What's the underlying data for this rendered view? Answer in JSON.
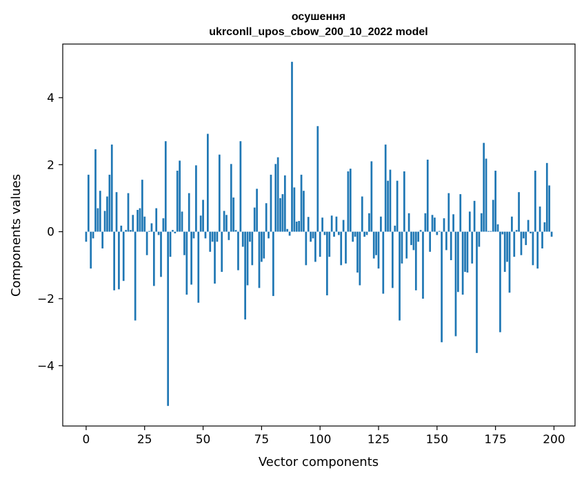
{
  "chart_data": {
    "type": "bar",
    "title_line1": "осушення",
    "title_line2": "ukrconll_upos_cbow_200_10_2022 model",
    "xlabel": "Vector components",
    "ylabel": "Components values",
    "xlim": [
      -10,
      209
    ],
    "ylim": [
      -5.8,
      5.6
    ],
    "xticks": [
      0,
      25,
      50,
      75,
      100,
      125,
      150,
      175,
      200
    ],
    "yticks": [
      -4,
      -2,
      0,
      2,
      4
    ],
    "bar_color": "#1f77b4",
    "x": [
      0,
      1,
      2,
      3,
      4,
      5,
      6,
      7,
      8,
      9,
      10,
      11,
      12,
      13,
      14,
      15,
      16,
      17,
      18,
      19,
      20,
      21,
      22,
      23,
      24,
      25,
      26,
      27,
      28,
      29,
      30,
      31,
      32,
      33,
      34,
      35,
      36,
      37,
      38,
      39,
      40,
      41,
      42,
      43,
      44,
      45,
      46,
      47,
      48,
      49,
      50,
      51,
      52,
      53,
      54,
      55,
      56,
      57,
      58,
      59,
      60,
      61,
      62,
      63,
      64,
      65,
      66,
      67,
      68,
      69,
      70,
      71,
      72,
      73,
      74,
      75,
      76,
      77,
      78,
      79,
      80,
      81,
      82,
      83,
      84,
      85,
      86,
      87,
      88,
      89,
      90,
      91,
      92,
      93,
      94,
      95,
      96,
      97,
      98,
      99,
      100,
      101,
      102,
      103,
      104,
      105,
      106,
      107,
      108,
      109,
      110,
      111,
      112,
      113,
      114,
      115,
      116,
      117,
      118,
      119,
      120,
      121,
      122,
      123,
      124,
      125,
      126,
      127,
      128,
      129,
      130,
      131,
      132,
      133,
      134,
      135,
      136,
      137,
      138,
      139,
      140,
      141,
      142,
      143,
      144,
      145,
      146,
      147,
      148,
      149,
      150,
      151,
      152,
      153,
      154,
      155,
      156,
      157,
      158,
      159,
      160,
      161,
      162,
      163,
      164,
      165,
      166,
      167,
      168,
      169,
      170,
      171,
      172,
      173,
      174,
      175,
      176,
      177,
      178,
      179,
      180,
      181,
      182,
      183,
      184,
      185,
      186,
      187,
      188,
      189,
      190,
      191,
      192,
      193,
      194,
      195,
      196,
      197,
      198,
      199
    ],
    "values": [
      -0.3,
      1.7,
      -1.1,
      -0.2,
      2.46,
      0.7,
      1.22,
      -0.5,
      0.62,
      1.05,
      1.7,
      2.6,
      -1.75,
      1.18,
      -1.72,
      0.18,
      -1.47,
      0.05,
      1.15,
      0.05,
      0.5,
      -2.65,
      0.65,
      0.7,
      1.55,
      0.45,
      -0.7,
      0.02,
      0.25,
      -1.62,
      0.7,
      -0.1,
      -1.35,
      0.4,
      2.7,
      -5.2,
      -0.75,
      0.05,
      -0.05,
      1.82,
      2.12,
      0.6,
      -0.7,
      -1.88,
      1.15,
      -1.58,
      -0.2,
      1.98,
      -2.12,
      0.48,
      0.95,
      -0.2,
      2.92,
      -0.6,
      -0.3,
      -1.55,
      -0.3,
      2.3,
      -1.2,
      0.62,
      0.5,
      -0.25,
      2.02,
      1.02,
      0.05,
      -1.15,
      2.7,
      -0.45,
      -2.62,
      -1.6,
      -0.3,
      -1.0,
      0.72,
      1.28,
      -1.68,
      -0.9,
      -0.8,
      0.85,
      -0.2,
      1.7,
      -1.92,
      2.02,
      2.22,
      1.0,
      1.12,
      1.68,
      0.08,
      -0.12,
      5.07,
      1.32,
      0.3,
      0.32,
      1.7,
      1.22,
      -1.0,
      0.44,
      -0.3,
      -0.2,
      -0.9,
      3.15,
      -0.75,
      0.42,
      -0.1,
      -1.9,
      -0.75,
      0.48,
      -0.15,
      0.45,
      -0.1,
      -1.0,
      0.35,
      -0.95,
      1.8,
      1.88,
      -0.3,
      -0.15,
      -1.22,
      -1.6,
      1.05,
      -0.15,
      -0.1,
      0.55,
      2.1,
      -0.8,
      -0.7,
      -1.1,
      0.45,
      -1.85,
      2.6,
      1.52,
      1.85,
      -1.68,
      0.18,
      1.52,
      -2.65,
      -0.95,
      1.8,
      -0.8,
      0.55,
      -0.4,
      -0.55,
      -1.75,
      -0.3,
      0.05,
      -2.0,
      0.55,
      2.15,
      -0.6,
      0.5,
      0.42,
      -0.1,
      0.02,
      -3.3,
      0.4,
      -0.55,
      1.15,
      -0.85,
      0.52,
      -3.12,
      -1.8,
      1.12,
      -1.88,
      -1.2,
      -1.22,
      0.6,
      -0.95,
      0.92,
      -3.62,
      -0.45,
      0.55,
      2.65,
      2.18,
      0.02,
      0.02,
      0.95,
      1.82,
      0.22,
      -3.0,
      -0.08,
      -1.2,
      -0.9,
      -1.82,
      0.45,
      -0.75,
      0.05,
      1.18,
      -0.7,
      -0.2,
      -0.4,
      0.35,
      -0.05,
      -1.0,
      1.82,
      -1.1,
      0.75,
      -0.5,
      0.28,
      2.05,
      1.38,
      -0.15
    ]
  }
}
